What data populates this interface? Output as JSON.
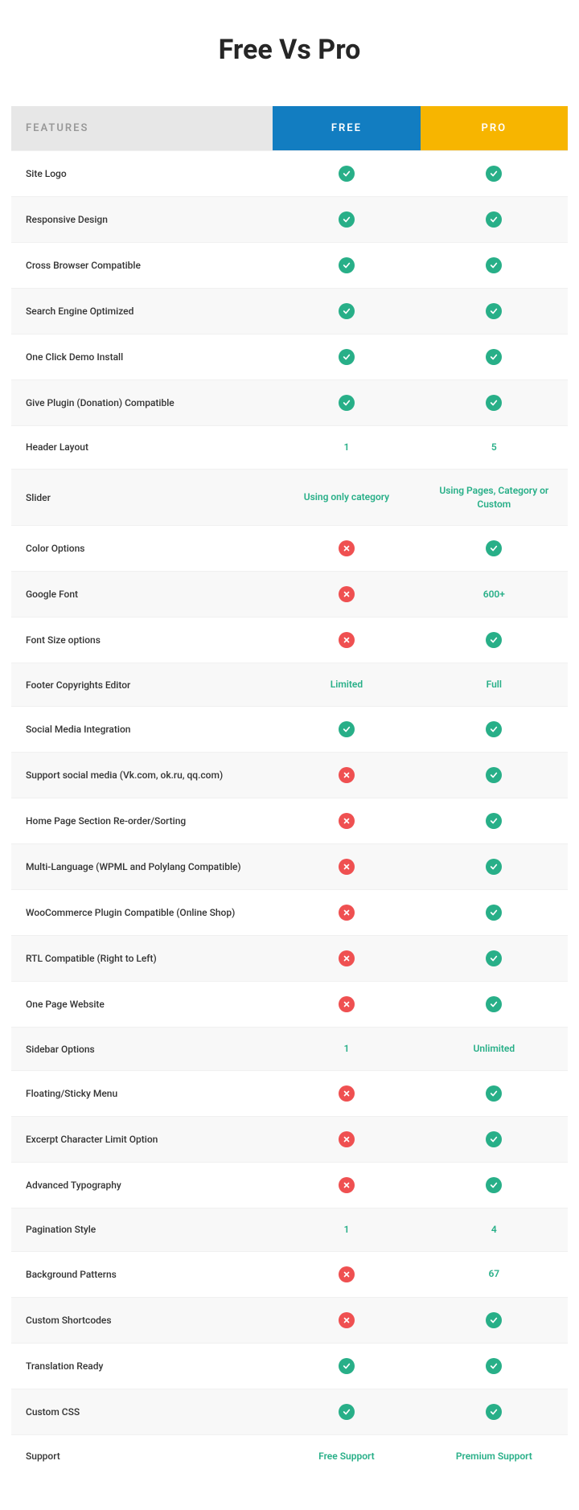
{
  "title": "Free Vs Pro",
  "headers": {
    "features": "FEATURES",
    "free": "FREE",
    "pro": "PRO"
  },
  "colors": {
    "free_header_bg": "#127dc1",
    "pro_header_bg": "#f7b500",
    "features_header_bg": "#e7e7e7",
    "features_header_text": "#999999",
    "check_bg": "#28af88",
    "cross_bg": "#ef5051",
    "text_value_color": "#28af88",
    "row_even_bg": "#f8f8f8",
    "row_odd_bg": "#ffffff",
    "feature_text": "#333333"
  },
  "rows": [
    {
      "feature": "Site Logo",
      "free": "check",
      "pro": "check"
    },
    {
      "feature": "Responsive Design",
      "free": "check",
      "pro": "check"
    },
    {
      "feature": "Cross Browser Compatible",
      "free": "check",
      "pro": "check"
    },
    {
      "feature": "Search Engine Optimized",
      "free": "check",
      "pro": "check"
    },
    {
      "feature": "One Click Demo Install",
      "free": "check",
      "pro": "check"
    },
    {
      "feature": "Give Plugin (Donation) Compatible",
      "free": "check",
      "pro": "check"
    },
    {
      "feature": "Header Layout",
      "free": "1",
      "pro": "5"
    },
    {
      "feature": "Slider",
      "free": "Using only category",
      "pro": "Using Pages, Category or Custom"
    },
    {
      "feature": "Color Options",
      "free": "cross",
      "pro": "check"
    },
    {
      "feature": "Google Font",
      "free": "cross",
      "pro": "600+"
    },
    {
      "feature": "Font Size options",
      "free": "cross",
      "pro": "check"
    },
    {
      "feature": "Footer Copyrights Editor",
      "free": "Limited",
      "pro": "Full"
    },
    {
      "feature": "Social Media Integration",
      "free": "check",
      "pro": "check"
    },
    {
      "feature": "Support social media (Vk.com, ok.ru, qq.com)",
      "free": "cross",
      "pro": "check"
    },
    {
      "feature": "Home Page Section Re-order/Sorting",
      "free": "cross",
      "pro": "check"
    },
    {
      "feature": "Multi-Language (WPML and Polylang Compatible)",
      "free": "cross",
      "pro": "check"
    },
    {
      "feature": "WooCommerce Plugin Compatible (Online Shop)",
      "free": "cross",
      "pro": "check"
    },
    {
      "feature": "RTL Compatible (Right to Left)",
      "free": "cross",
      "pro": "check"
    },
    {
      "feature": "One Page Website",
      "free": "cross",
      "pro": "check"
    },
    {
      "feature": "Sidebar Options",
      "free": "1",
      "pro": "Unlimited"
    },
    {
      "feature": "Floating/Sticky Menu",
      "free": "cross",
      "pro": "check"
    },
    {
      "feature": "Excerpt Character Limit Option",
      "free": "cross",
      "pro": "check"
    },
    {
      "feature": "Advanced Typography",
      "free": "cross",
      "pro": "check"
    },
    {
      "feature": "Pagination Style",
      "free": "1",
      "pro": "4"
    },
    {
      "feature": "Background Patterns",
      "free": "cross",
      "pro": "67"
    },
    {
      "feature": "Custom Shortcodes",
      "free": "cross",
      "pro": "check"
    },
    {
      "feature": "Translation Ready",
      "free": "check",
      "pro": "check"
    },
    {
      "feature": "Custom CSS",
      "free": "check",
      "pro": "check"
    },
    {
      "feature": "Support",
      "free": "Free Support",
      "pro": "Premium Support"
    }
  ]
}
